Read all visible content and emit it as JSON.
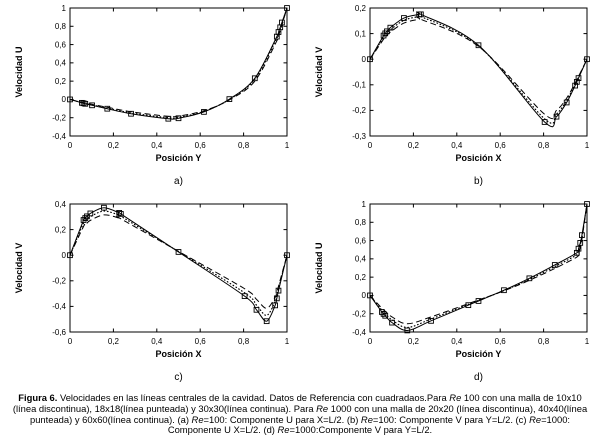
{
  "page": {
    "background": "#ffffff",
    "ink": "#000000"
  },
  "figure": {
    "caption": {
      "segments": [
        {
          "text": "Figura 6.",
          "style": "bold"
        },
        {
          "text": " Velocidades en las líneas centrales de la cavidad. Datos de Referencia con cuadradaos.Para ",
          "style": "normal"
        },
        {
          "text": "Re",
          "style": "italic"
        },
        {
          "text": " 100 con una malla de 10x10 (línea discontinua), 18x18(línea punteada) y 30x30(línea continua). Para ",
          "style": "normal"
        },
        {
          "text": "Re",
          "style": "italic"
        },
        {
          "text": " 1000 con una malla de 20x20 (línea discontinua), 40x40(línea punteada) y 60x60(línea continua). (a) ",
          "style": "normal"
        },
        {
          "text": "Re",
          "style": "italic"
        },
        {
          "text": "=100: Componente U para X=L/2. (b) ",
          "style": "normal"
        },
        {
          "text": "Re",
          "style": "italic"
        },
        {
          "text": "=100: Componente V para Y=L/2. (c) ",
          "style": "normal"
        },
        {
          "text": "Re",
          "style": "italic"
        },
        {
          "text": "=1000: Componente U X=L/2. (d) ",
          "style": "normal"
        },
        {
          "text": "Re",
          "style": "italic"
        },
        {
          "text": "=1000:Componente V para Y=L/2.",
          "style": "normal"
        }
      ]
    }
  },
  "chart_data": [
    {
      "id": "a",
      "type": "line",
      "letter": "a)",
      "title": "",
      "xlabel": "Posición Y",
      "ylabel": "Velocidad U",
      "xlim": [
        0,
        1
      ],
      "ylim": [
        -0.4,
        1
      ],
      "xticks": [
        0,
        0.2,
        0.4,
        0.6,
        0.8,
        1
      ],
      "yticks": [
        -0.4,
        -0.2,
        0,
        0.2,
        0.4,
        0.6,
        0.8,
        1
      ],
      "grid": false,
      "legend": "none",
      "x": [
        0,
        0.0547,
        0.0625,
        0.0703,
        0.1016,
        0.1719,
        0.2813,
        0.4531,
        0.5,
        0.6172,
        0.7344,
        0.8516,
        0.9531,
        0.9609,
        0.9688,
        0.9766,
        1
      ],
      "series": [
        {
          "name": "malla 10x10 (línea discontinua)",
          "style": "dashed",
          "y": [
            0,
            -0.031,
            -0.035,
            -0.04,
            -0.054,
            -0.086,
            -0.135,
            -0.185,
            -0.182,
            -0.124,
            -0.005,
            0.2,
            0.64,
            0.695,
            0.752,
            0.812,
            1
          ]
        },
        {
          "name": "malla 18x18 (línea punteada)",
          "style": "dotted",
          "y": [
            0,
            -0.035,
            -0.039,
            -0.045,
            -0.06,
            -0.095,
            -0.148,
            -0.2,
            -0.196,
            -0.131,
            0,
            0.22,
            0.67,
            0.722,
            0.775,
            0.83,
            1
          ]
        },
        {
          "name": "malla 30x30 (línea continua)",
          "style": "solid",
          "y": [
            0,
            -0.0372,
            -0.0419,
            -0.0478,
            -0.0643,
            -0.1015,
            -0.1566,
            -0.2109,
            -0.2058,
            -0.1364,
            0.0033,
            0.2315,
            0.6872,
            0.7372,
            0.7887,
            0.8412,
            1
          ]
        },
        {
          "name": "Datos de Referencia (cuadrados)",
          "style": "squares",
          "y": [
            0,
            -0.0372,
            -0.0419,
            -0.0478,
            -0.0643,
            -0.1015,
            -0.1566,
            -0.2109,
            -0.2058,
            -0.1364,
            0.0033,
            0.2315,
            0.6872,
            0.7372,
            0.7887,
            0.8412,
            1
          ]
        }
      ]
    },
    {
      "id": "b",
      "type": "line",
      "letter": "b)",
      "title": "",
      "xlabel": "Posición X",
      "ylabel": "Velocidad V",
      "xlim": [
        0,
        1
      ],
      "ylim": [
        -0.3,
        0.2
      ],
      "xticks": [
        0,
        0.2,
        0.4,
        0.6,
        0.8,
        1
      ],
      "yticks": [
        -0.3,
        -0.2,
        -0.1,
        0,
        0.1,
        0.2
      ],
      "grid": false,
      "legend": "none",
      "x": [
        0,
        0.0625,
        0.0703,
        0.0781,
        0.0938,
        0.1563,
        0.2266,
        0.2344,
        0.5,
        0.8047,
        0.8594,
        0.9063,
        0.9453,
        0.9531,
        0.9609,
        1
      ],
      "series": [
        {
          "name": "malla 10x10 (línea discontinua)",
          "style": "dashed",
          "y": [
            0,
            0.078,
            0.086,
            0.093,
            0.106,
            0.141,
            0.156,
            0.156,
            0.05,
            -0.215,
            -0.2,
            -0.152,
            -0.093,
            -0.08,
            -0.067,
            0
          ]
        },
        {
          "name": "malla 18x18 (línea punteada)",
          "style": "dotted",
          "y": [
            0,
            0.086,
            0.094,
            0.102,
            0.115,
            0.152,
            0.167,
            0.167,
            0.052,
            -0.233,
            -0.214,
            -0.161,
            -0.098,
            -0.084,
            -0.07,
            0
          ]
        },
        {
          "name": "malla 30x30 (línea continua)",
          "style": "solid",
          "y": [
            0,
            0.0923,
            0.1009,
            0.1089,
            0.1232,
            0.1608,
            0.1751,
            0.1753,
            0.0545,
            -0.2453,
            -0.2245,
            -0.1691,
            -0.1031,
            -0.0886,
            -0.0739,
            0
          ]
        },
        {
          "name": "Datos de Referencia (cuadrados)",
          "style": "squares",
          "y": [
            0,
            0.0923,
            0.1009,
            0.1089,
            0.1232,
            0.1608,
            0.1751,
            0.1753,
            0.0545,
            -0.2453,
            -0.2245,
            -0.1691,
            -0.1031,
            -0.0886,
            -0.0739,
            0
          ]
        }
      ]
    },
    {
      "id": "c",
      "type": "line",
      "letter": "c)",
      "title": "",
      "xlabel": "Posición X",
      "ylabel": "Velocidad V",
      "xlim": [
        0,
        1
      ],
      "ylim": [
        -0.6,
        0.4
      ],
      "xticks": [
        0,
        0.2,
        0.4,
        0.6,
        0.8,
        1
      ],
      "yticks": [
        -0.6,
        -0.4,
        -0.2,
        0,
        0.2,
        0.4
      ],
      "grid": false,
      "legend": "none",
      "x": [
        0,
        0.0625,
        0.0703,
        0.0781,
        0.0938,
        0.1563,
        0.2266,
        0.2344,
        0.5,
        0.8047,
        0.8594,
        0.9063,
        0.9453,
        0.9531,
        0.9609,
        1
      ],
      "series": [
        {
          "name": "malla 20x20 (línea discontinua)",
          "style": "dashed",
          "y": [
            0,
            0.225,
            0.238,
            0.25,
            0.272,
            0.315,
            0.29,
            0.284,
            0.03,
            -0.262,
            -0.345,
            -0.415,
            -0.33,
            -0.29,
            -0.242,
            0
          ]
        },
        {
          "name": "malla 40x40 (línea punteada)",
          "style": "dotted",
          "y": [
            0,
            0.252,
            0.266,
            0.279,
            0.301,
            0.345,
            0.312,
            0.305,
            0.028,
            -0.294,
            -0.39,
            -0.47,
            -0.362,
            -0.315,
            -0.26,
            0
          ]
        },
        {
          "name": "malla 60x60 (línea continua)",
          "style": "solid",
          "y": [
            0,
            0.2749,
            0.2901,
            0.3035,
            0.3263,
            0.371,
            0.3308,
            0.3224,
            0.0253,
            -0.3197,
            -0.4267,
            -0.5155,
            -0.3919,
            -0.3371,
            -0.2767,
            0
          ]
        },
        {
          "name": "Datos de Referencia (cuadrados)",
          "style": "squares",
          "y": [
            0,
            0.2749,
            0.2901,
            0.3035,
            0.3263,
            0.371,
            0.3308,
            0.3224,
            0.0253,
            -0.3197,
            -0.4267,
            -0.5155,
            -0.3919,
            -0.3371,
            -0.2767,
            0
          ]
        }
      ]
    },
    {
      "id": "d",
      "type": "line",
      "letter": "d)",
      "title": "",
      "xlabel": "Posición Y",
      "ylabel": "Velocidad U",
      "xlim": [
        0,
        1
      ],
      "ylim": [
        -0.4,
        1
      ],
      "xticks": [
        0,
        0.2,
        0.4,
        0.6,
        0.8,
        1
      ],
      "yticks": [
        -0.4,
        -0.2,
        0,
        0.2,
        0.4,
        0.6,
        0.8,
        1
      ],
      "grid": false,
      "legend": "none",
      "x": [
        0,
        0.0547,
        0.0625,
        0.0703,
        0.1016,
        0.1719,
        0.2813,
        0.4531,
        0.5,
        0.6172,
        0.7344,
        0.8516,
        0.9531,
        0.9609,
        0.9688,
        0.9766,
        1
      ],
      "series": [
        {
          "name": "malla 20x20 (línea discontinua)",
          "style": "dashed",
          "y": [
            0,
            -0.14,
            -0.157,
            -0.173,
            -0.235,
            -0.31,
            -0.235,
            -0.09,
            -0.05,
            0.05,
            0.165,
            0.295,
            0.42,
            0.465,
            0.525,
            0.615,
            1
          ]
        },
        {
          "name": "malla 40x40 (línea punteada)",
          "style": "dotted",
          "y": [
            0,
            -0.162,
            -0.181,
            -0.199,
            -0.268,
            -0.35,
            -0.258,
            -0.098,
            -0.055,
            0.053,
            0.176,
            0.315,
            0.445,
            0.49,
            0.552,
            0.638,
            1
          ]
        },
        {
          "name": "malla 60x60 (línea continua)",
          "style": "solid",
          "y": [
            0,
            -0.1811,
            -0.202,
            -0.2222,
            -0.2973,
            -0.3829,
            -0.2781,
            -0.1065,
            -0.0608,
            0.057,
            0.1872,
            0.333,
            0.466,
            0.5112,
            0.5749,
            0.6593,
            1
          ]
        },
        {
          "name": "Datos de Referencia (cuadrados)",
          "style": "squares",
          "y": [
            0,
            -0.1811,
            -0.202,
            -0.2222,
            -0.2973,
            -0.3829,
            -0.2781,
            -0.1065,
            -0.0608,
            0.057,
            0.1872,
            0.333,
            0.466,
            0.5112,
            0.5749,
            0.6593,
            1
          ]
        }
      ]
    }
  ]
}
